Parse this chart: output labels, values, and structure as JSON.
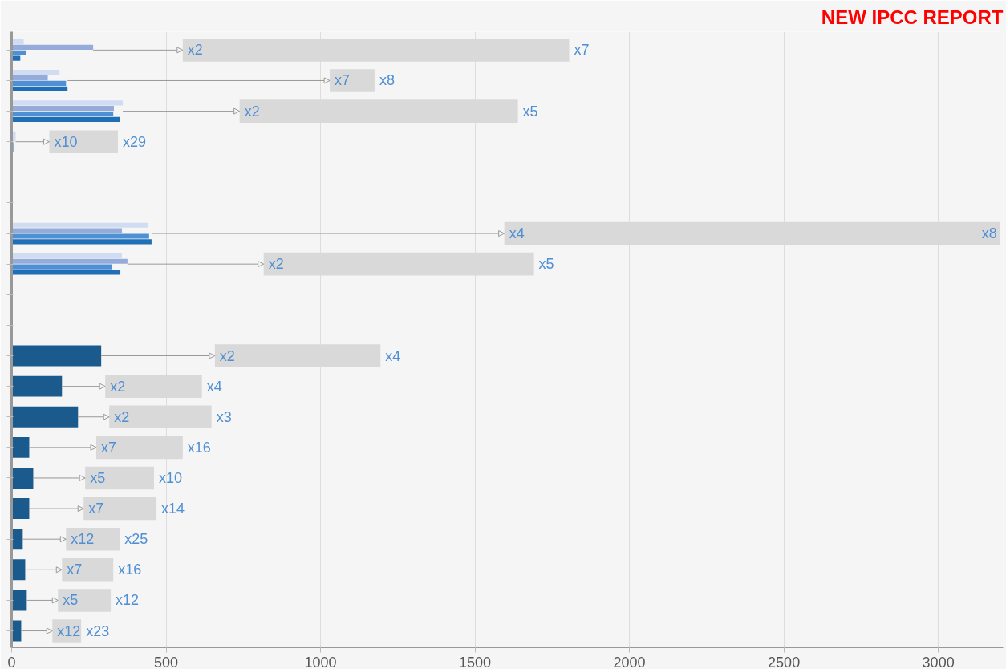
{
  "chart_data": {
    "type": "bar",
    "orientation": "horizontal",
    "title": "NEW IPCC REPORT",
    "categories": [
      null,
      null,
      null,
      null,
      null,
      null,
      null,
      null,
      null,
      null,
      null,
      null,
      null,
      null,
      null,
      null,
      null,
      null,
      null,
      null
    ],
    "series": [
      {
        "color": "#cfdcf2",
        "values": [
          39,
          155,
          360,
          13,
          null,
          null,
          440,
          357,
          null,
          null,
          null,
          null,
          null,
          null,
          null,
          null,
          null,
          null,
          null,
          null
        ]
      },
      {
        "color": "#95abd9",
        "values": [
          264,
          117,
          331,
          8,
          null,
          null,
          357,
          375,
          null,
          null,
          null,
          null,
          null,
          null,
          null,
          null,
          null,
          null,
          null,
          null
        ]
      },
      {
        "color": "#4f8fd3",
        "values": [
          47,
          176,
          329,
          null,
          null,
          null,
          445,
          326,
          null,
          null,
          null,
          null,
          null,
          null,
          null,
          null,
          null,
          null,
          null,
          null
        ]
      },
      {
        "color": "#1f6fb8",
        "values": [
          28,
          181,
          350,
          null,
          null,
          null,
          453,
          352,
          null,
          null,
          null,
          null,
          null,
          null,
          null,
          null,
          null,
          null,
          null,
          null
        ]
      },
      {
        "color": "#1b5a8c",
        "values": [
          null,
          null,
          null,
          null,
          null,
          null,
          null,
          null,
          null,
          null,
          290,
          163,
          215,
          57,
          70,
          57,
          36,
          44,
          49,
          31
        ]
      },
      {
        "color": "#d9d9d9",
        "base": [
          554,
          1030,
          738,
          122,
          null,
          null,
          1595,
          816,
          null,
          null,
          658,
          303,
          316,
          274,
          238,
          233,
          176,
          163,
          150,
          132
        ],
        "values": [
          1251,
          145,
          901,
          222,
          null,
          null,
          1605,
          875,
          null,
          null,
          536,
          313,
          331,
          280,
          223,
          236,
          174,
          166,
          171,
          93
        ],
        "value_labels": [
          "x7",
          "x8",
          "x5",
          "x29",
          null,
          null,
          "x8",
          "x5",
          null,
          null,
          "x4",
          "x4",
          "x3",
          "x16",
          "x10",
          "x14",
          "x25",
          "x16",
          "x12",
          "x23"
        ]
      }
    ],
    "annotations": [
      {
        "text": "x2",
        "x": 554
      },
      {
        "text": "x7",
        "x": 1030
      },
      {
        "text": "x2",
        "x": 738
      },
      {
        "text": "x10",
        "x": 122
      },
      {
        "text": "x4",
        "x": 1595
      },
      {
        "text": "x2",
        "x": 816
      },
      {
        "text": "x2",
        "x": 658
      },
      {
        "text": "x2",
        "x": 303
      },
      {
        "text": "x2",
        "x": 316
      },
      {
        "text": "x7",
        "x": 274
      },
      {
        "text": "x5",
        "x": 238
      },
      {
        "text": "x7",
        "x": 233
      },
      {
        "text": "x12",
        "x": 176
      },
      {
        "text": "x7",
        "x": 163
      },
      {
        "text": "x5",
        "x": 150
      },
      {
        "text": "x12",
        "x": 132
      }
    ],
    "xlim": [
      0,
      3210
    ],
    "xticks": [
      0,
      500,
      1000,
      1500,
      2000,
      2500,
      3000
    ],
    "grid": "x",
    "tick_labels": "x"
  }
}
